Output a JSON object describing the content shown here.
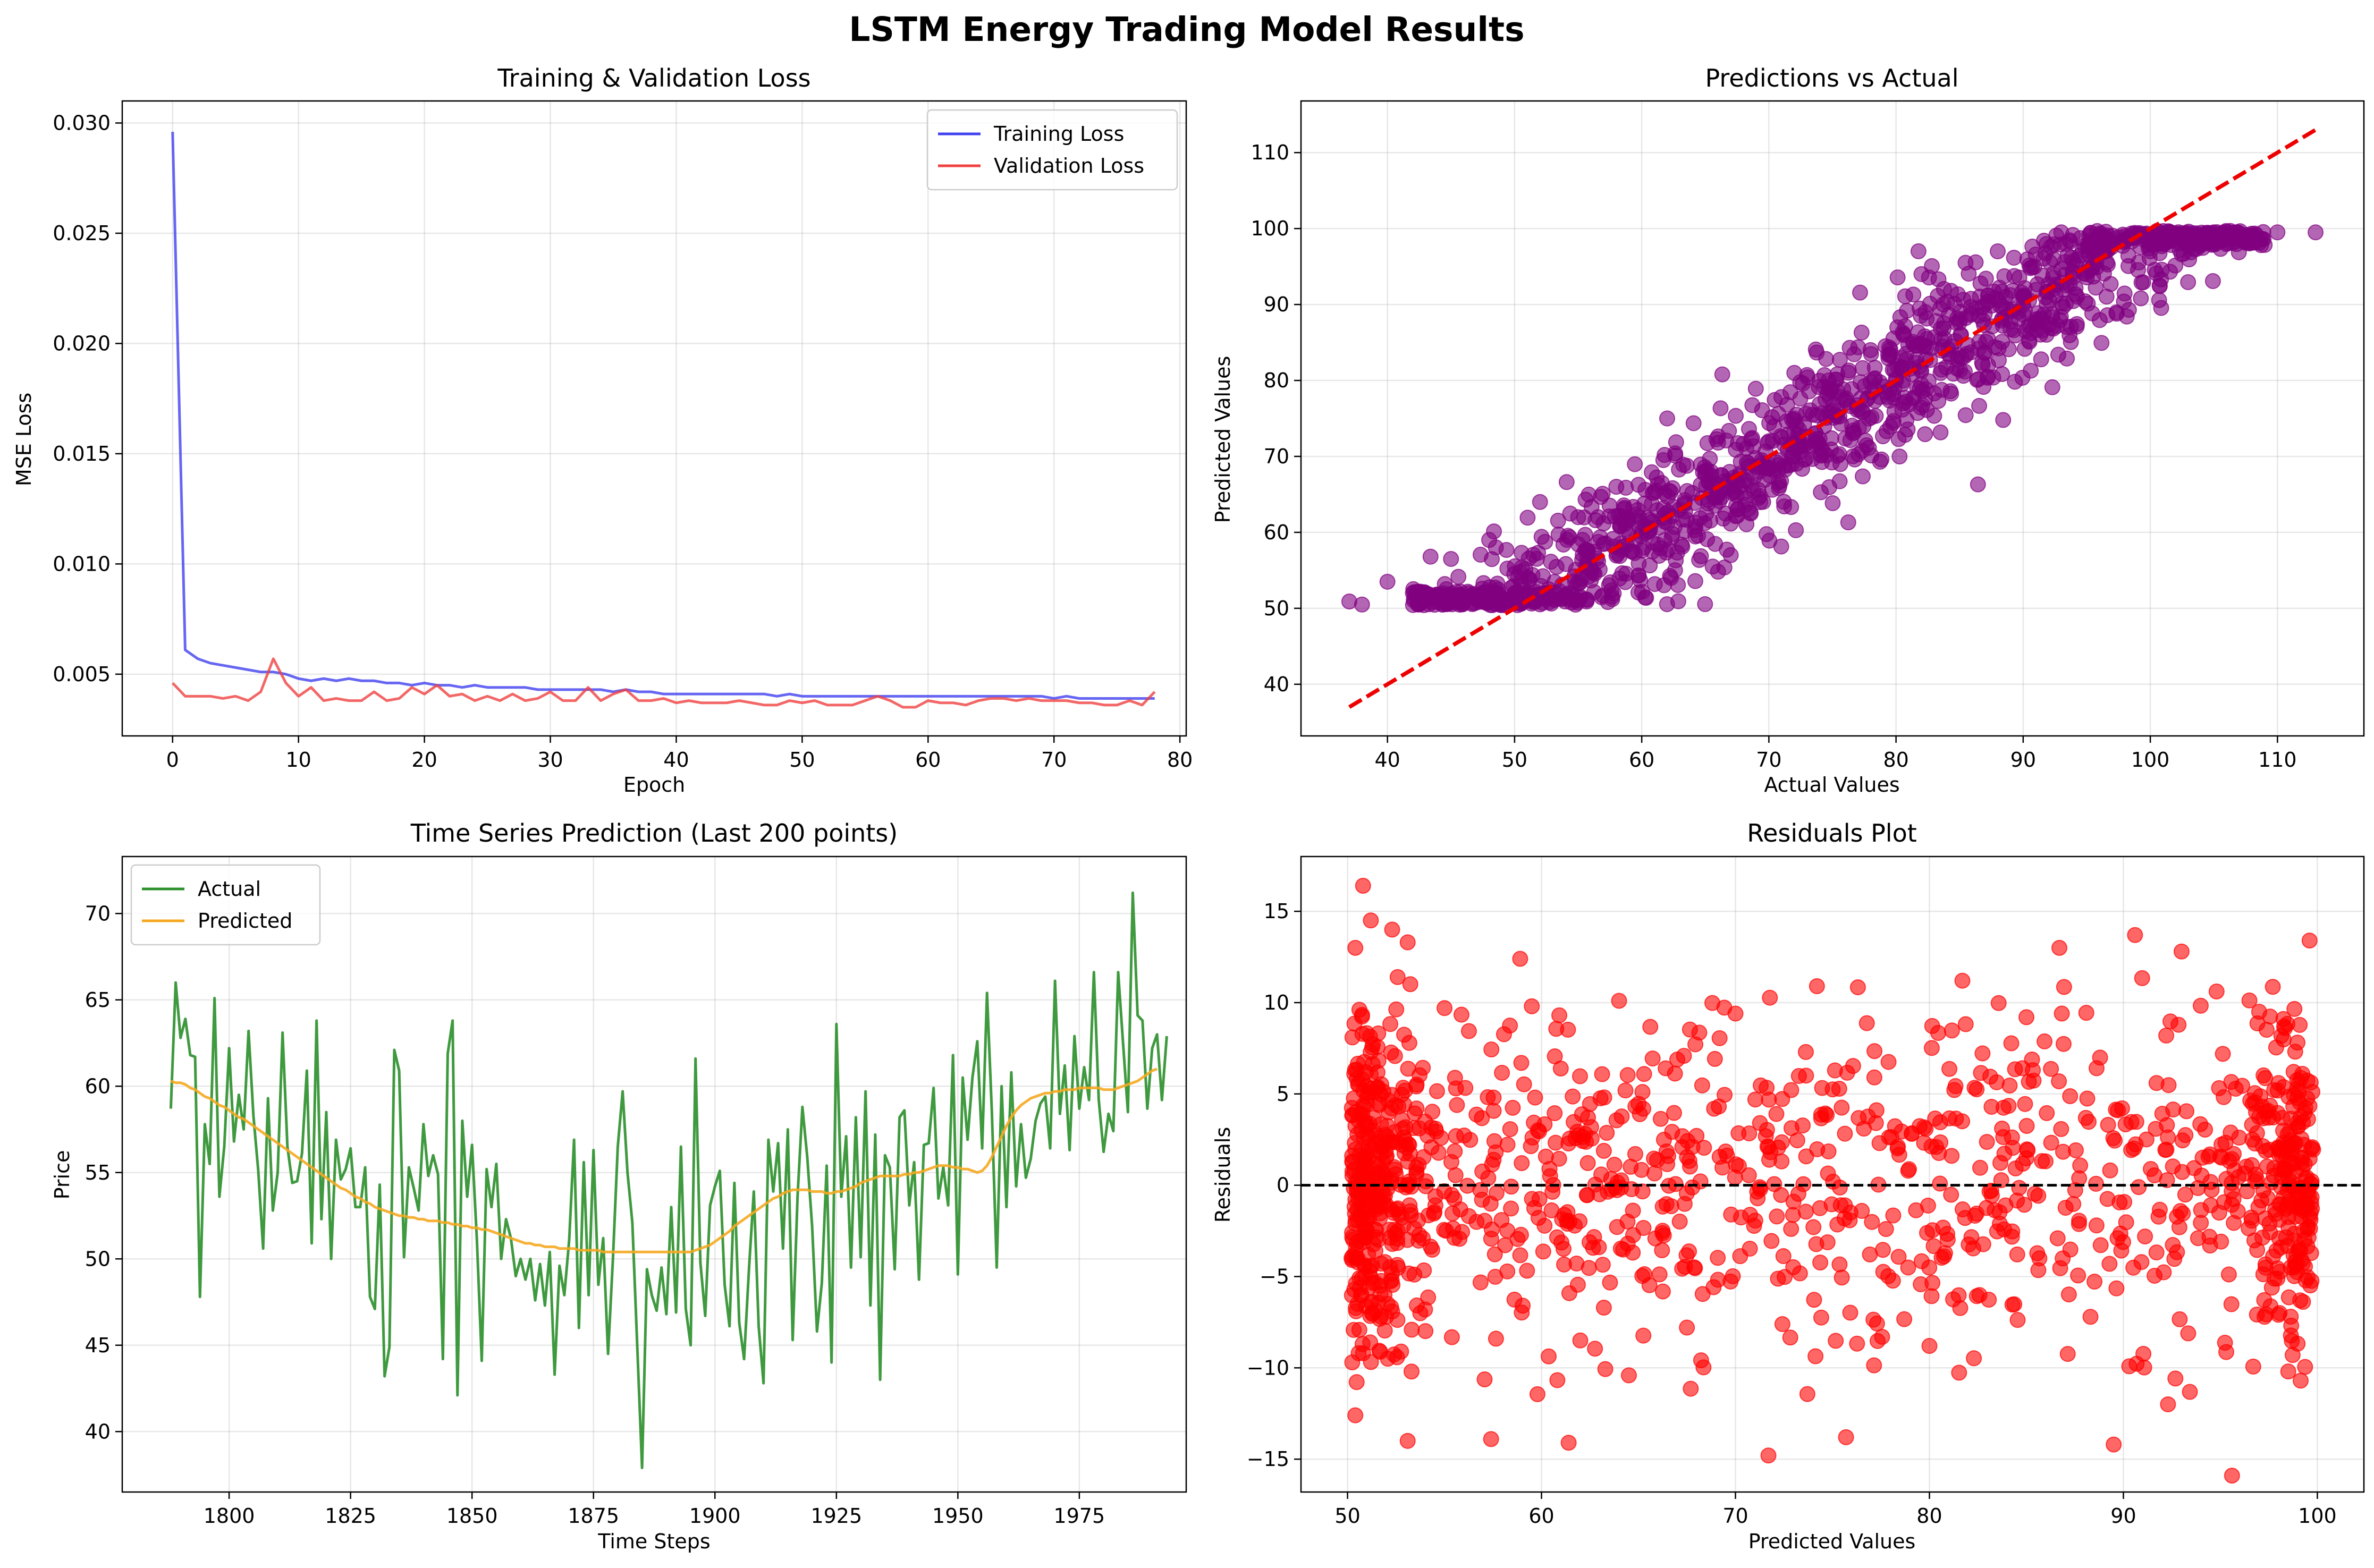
{
  "suptitle": "LSTM Energy Trading Model Results",
  "colors": {
    "training": "#4040f0",
    "validation": "#f04040",
    "scatter": "#800080",
    "ideal_line": "#ee0000",
    "actual": "#2a8f2a",
    "predicted": "#f5a820",
    "residuals": "#ff0000",
    "zero_line": "#000000"
  },
  "chart_data": [
    {
      "type": "line",
      "title": "Training & Validation Loss",
      "xlabel": "Epoch",
      "ylabel": "MSE Loss",
      "xlim": [
        -4,
        80.5
      ],
      "ylim": [
        0.0022,
        0.031
      ],
      "xticks": [
        0,
        10,
        20,
        30,
        40,
        50,
        60,
        70,
        80
      ],
      "xtick_labels": [
        "0",
        "10",
        "20",
        "30",
        "40",
        "50",
        "60",
        "70",
        "80"
      ],
      "yticks": [
        0.005,
        0.01,
        0.015,
        0.02,
        0.025,
        0.03
      ],
      "ytick_labels": [
        "0.005",
        "0.010",
        "0.015",
        "0.020",
        "0.025",
        "0.030"
      ],
      "grid": true,
      "legend": "upper right",
      "series": [
        {
          "name": "Training Loss",
          "values": [
            0.0296,
            0.0061,
            0.0057,
            0.0055,
            0.0054,
            0.0053,
            0.0052,
            0.0051,
            0.0051,
            0.005,
            0.0048,
            0.0047,
            0.0048,
            0.0047,
            0.0048,
            0.0047,
            0.0047,
            0.0046,
            0.0046,
            0.0045,
            0.0046,
            0.0045,
            0.0045,
            0.0044,
            0.0045,
            0.0044,
            0.0044,
            0.0044,
            0.0044,
            0.0043,
            0.0043,
            0.0043,
            0.0043,
            0.0043,
            0.0043,
            0.0042,
            0.0043,
            0.0042,
            0.0042,
            0.0041,
            0.0041,
            0.0041,
            0.0041,
            0.0041,
            0.0041,
            0.0041,
            0.0041,
            0.0041,
            0.004,
            0.0041,
            0.004,
            0.004,
            0.004,
            0.004,
            0.004,
            0.004,
            0.004,
            0.004,
            0.004,
            0.004,
            0.004,
            0.004,
            0.004,
            0.004,
            0.004,
            0.004,
            0.004,
            0.004,
            0.004,
            0.004,
            0.0039,
            0.004,
            0.0039,
            0.0039,
            0.0039,
            0.0039,
            0.0039,
            0.0039,
            0.0039
          ]
        },
        {
          "name": "Validation Loss",
          "values": [
            0.0046,
            0.004,
            0.004,
            0.004,
            0.0039,
            0.004,
            0.0038,
            0.0042,
            0.0057,
            0.0046,
            0.004,
            0.0044,
            0.0038,
            0.0039,
            0.0038,
            0.0038,
            0.0042,
            0.0038,
            0.0039,
            0.0044,
            0.0041,
            0.0045,
            0.004,
            0.0041,
            0.0038,
            0.004,
            0.0038,
            0.0041,
            0.0038,
            0.0039,
            0.0042,
            0.0038,
            0.0038,
            0.0044,
            0.0038,
            0.0041,
            0.0043,
            0.0038,
            0.0038,
            0.0039,
            0.0037,
            0.0038,
            0.0037,
            0.0037,
            0.0037,
            0.0038,
            0.0037,
            0.0036,
            0.0036,
            0.0038,
            0.0037,
            0.0038,
            0.0036,
            0.0036,
            0.0036,
            0.0038,
            0.004,
            0.0038,
            0.0035,
            0.0035,
            0.0038,
            0.0037,
            0.0037,
            0.0036,
            0.0038,
            0.0039,
            0.0039,
            0.0038,
            0.0039,
            0.0038,
            0.0038,
            0.0038,
            0.0037,
            0.0037,
            0.0036,
            0.0036,
            0.0038,
            0.0036,
            0.0042
          ]
        }
      ]
    },
    {
      "type": "scatter",
      "title": "Predictions vs Actual",
      "xlabel": "Actual Values",
      "ylabel": "Predicted Values",
      "xlim": [
        33.2,
        116.8
      ],
      "ylim": [
        33.2,
        116.8
      ],
      "xticks": [
        40,
        50,
        60,
        70,
        80,
        90,
        100,
        110
      ],
      "xtick_labels": [
        "40",
        "50",
        "60",
        "70",
        "80",
        "90",
        "100",
        "110"
      ],
      "yticks": [
        40,
        50,
        60,
        70,
        80,
        90,
        100,
        110
      ],
      "ytick_labels": [
        "40",
        "50",
        "60",
        "70",
        "80",
        "90",
        "100",
        "110"
      ],
      "grid": true,
      "reference_line": {
        "x": [
          37,
          113
        ],
        "y": [
          37,
          113
        ],
        "style": "dashed"
      },
      "point_count_drawn": 1400,
      "points_sample": [
        [
          37.0,
          50.9
        ],
        [
          38.0,
          50.5
        ],
        [
          40.0,
          53.5
        ],
        [
          42.0,
          52.0
        ],
        [
          45.0,
          56.5
        ],
        [
          48.0,
          59.0
        ],
        [
          50.0,
          52.0
        ],
        [
          52.0,
          64.0
        ],
        [
          55.0,
          62.0
        ],
        [
          58.0,
          66.0
        ],
        [
          60.0,
          60.0
        ],
        [
          62.0,
          75.0
        ],
        [
          65.0,
          68.0
        ],
        [
          67.0,
          57.0
        ],
        [
          70.0,
          72.0
        ],
        [
          72.0,
          81.0
        ],
        [
          75.0,
          76.0
        ],
        [
          78.0,
          84.0
        ],
        [
          80.0,
          80.0
        ],
        [
          82.0,
          94.0
        ],
        [
          85.0,
          88.0
        ],
        [
          88.0,
          97.0
        ],
        [
          90.0,
          91.0
        ],
        [
          93.0,
          99.5
        ],
        [
          95.0,
          94.0
        ],
        [
          98.0,
          99.0
        ],
        [
          100.0,
          97.0
        ],
        [
          105.0,
          99.5
        ],
        [
          110.0,
          99.5
        ],
        [
          113.0,
          99.5
        ]
      ]
    },
    {
      "type": "line",
      "title": "Time Series Prediction (Last 200 points)",
      "xlabel": "Time Steps",
      "ylabel": "Price",
      "x_start": 1788,
      "xlim": [
        1778,
        1997
      ],
      "ylim": [
        36.5,
        73.3
      ],
      "xticks": [
        1800,
        1825,
        1850,
        1875,
        1900,
        1925,
        1950,
        1975
      ],
      "xtick_labels": [
        "1800",
        "1825",
        "1850",
        "1875",
        "1900",
        "1925",
        "1950",
        "1975"
      ],
      "yticks": [
        40,
        45,
        50,
        55,
        60,
        65,
        70
      ],
      "ytick_labels": [
        "40",
        "45",
        "50",
        "55",
        "60",
        "65",
        "70"
      ],
      "grid": true,
      "legend": "upper left",
      "series": [
        {
          "name": "Actual",
          "values": [
            58.7,
            66.0,
            62.8,
            63.9,
            61.8,
            61.7,
            47.8,
            57.8,
            55.5,
            65.1,
            53.6,
            56.5,
            62.2,
            56.8,
            59.5,
            57.5,
            63.2,
            58.3,
            55.1,
            50.6,
            59.3,
            52.8,
            55.0,
            63.1,
            56.5,
            54.4,
            54.5,
            56.1,
            60.9,
            50.9,
            63.8,
            52.3,
            58.5,
            50.0,
            56.9,
            54.6,
            55.2,
            56.4,
            53.0,
            53.0,
            55.3,
            47.8,
            47.1,
            54.3,
            43.2,
            44.9,
            62.1,
            60.9,
            50.1,
            55.3,
            54.1,
            52.8,
            57.8,
            54.8,
            56.0,
            54.9,
            44.2,
            61.9,
            63.8,
            42.1,
            58.0,
            53.6,
            56.6,
            51.1,
            44.1,
            55.2,
            53.0,
            55.5,
            50.0,
            52.3,
            51.2,
            49.0,
            50.0,
            48.8,
            50.0,
            47.6,
            49.7,
            47.3,
            50.4,
            43.3,
            49.6,
            47.9,
            51.1,
            56.9,
            46.0,
            55.6,
            47.9,
            56.3,
            48.5,
            51.2,
            44.5,
            50.0,
            56.5,
            59.7,
            55.0,
            52.1,
            45.0,
            37.9,
            49.4,
            47.9,
            47.0,
            49.5,
            46.8,
            53.0,
            46.9,
            56.5,
            47.1,
            45.0,
            61.6,
            49.8,
            46.7,
            53.1,
            54.2,
            55.1,
            48.5,
            46.1,
            54.4,
            46.3,
            44.2,
            49.4,
            53.9,
            46.1,
            42.8,
            56.9,
            53.9,
            56.7,
            50.6,
            57.5,
            45.3,
            53.6,
            58.8,
            55.9,
            51.9,
            45.8,
            48.6,
            55.4,
            44.0,
            63.6,
            53.6,
            57.1,
            49.5,
            58.2,
            50.1,
            59.7,
            47.3,
            57.2,
            43.0,
            56.0,
            55.3,
            49.4,
            58.2,
            58.6,
            53.1,
            55.6,
            48.8,
            56.6,
            56.7,
            59.9,
            53.5,
            55.3,
            53.1,
            61.8,
            49.1,
            60.5,
            56.9,
            60.5,
            62.6,
            56.4,
            65.4,
            58.5,
            49.5,
            60.0,
            53.0,
            60.8,
            54.2,
            57.8,
            54.7,
            55.8,
            58.0,
            59.0,
            59.4,
            56.4,
            66.1,
            58.4,
            61.2,
            56.3,
            62.9,
            58.7,
            61.1,
            59.2,
            66.6,
            59.2,
            56.2,
            58.4,
            57.4,
            66.6,
            62.5,
            58.5,
            71.2,
            64.1,
            63.8,
            58.7,
            62.2,
            63.0,
            59.2,
            62.9
          ]
        },
        {
          "name": "Predicted",
          "values": [
            60.3,
            60.2,
            60.2,
            60.1,
            59.9,
            59.8,
            59.6,
            59.4,
            59.3,
            59.1,
            58.9,
            58.8,
            58.6,
            58.4,
            58.2,
            58.1,
            57.9,
            57.7,
            57.5,
            57.3,
            57.1,
            56.9,
            56.7,
            56.5,
            56.3,
            56.1,
            55.9,
            55.7,
            55.5,
            55.3,
            55.1,
            54.9,
            54.7,
            54.5,
            54.3,
            54.1,
            54.0,
            53.8,
            53.6,
            53.5,
            53.3,
            53.2,
            53.0,
            52.9,
            52.8,
            52.7,
            52.6,
            52.5,
            52.5,
            52.4,
            52.4,
            52.3,
            52.3,
            52.2,
            52.2,
            52.2,
            52.1,
            52.1,
            52.0,
            52.0,
            51.9,
            51.9,
            51.8,
            51.8,
            51.7,
            51.7,
            51.6,
            51.5,
            51.4,
            51.3,
            51.2,
            51.1,
            51.0,
            50.9,
            50.9,
            50.8,
            50.8,
            50.7,
            50.7,
            50.7,
            50.6,
            50.6,
            50.6,
            50.6,
            50.5,
            50.5,
            50.5,
            50.5,
            50.5,
            50.4,
            50.4,
            50.4,
            50.4,
            50.4,
            50.4,
            50.4,
            50.4,
            50.4,
            50.4,
            50.4,
            50.4,
            50.4,
            50.4,
            50.4,
            50.4,
            50.4,
            50.4,
            50.4,
            50.5,
            50.6,
            50.7,
            50.8,
            51.0,
            51.2,
            51.4,
            51.6,
            51.9,
            52.1,
            52.3,
            52.5,
            52.7,
            52.9,
            53.1,
            53.3,
            53.5,
            53.6,
            53.8,
            53.9,
            54.0,
            54.0,
            54.0,
            54.0,
            53.9,
            53.9,
            53.9,
            53.8,
            53.8,
            53.9,
            53.9,
            54.0,
            54.1,
            54.2,
            54.4,
            54.5,
            54.6,
            54.7,
            54.8,
            54.8,
            54.8,
            54.8,
            54.8,
            54.9,
            54.9,
            55.0,
            55.0,
            55.1,
            55.2,
            55.3,
            55.4,
            55.4,
            55.4,
            55.3,
            55.3,
            55.2,
            55.2,
            55.1,
            55.0,
            55.1,
            55.4,
            55.9,
            56.5,
            57.1,
            57.7,
            58.2,
            58.6,
            58.9,
            59.1,
            59.3,
            59.4,
            59.5,
            59.6,
            59.6,
            59.7,
            59.7,
            59.8,
            59.8,
            59.8,
            59.9,
            59.9,
            59.9,
            59.9,
            59.9,
            59.8,
            59.8,
            59.8,
            59.9,
            60.0,
            60.1,
            60.2,
            60.3,
            60.5,
            60.7,
            60.9,
            61.0
          ]
        }
      ]
    },
    {
      "type": "scatter",
      "title": "Residuals Plot",
      "xlabel": "Predicted Values",
      "ylabel": "Residuals",
      "xlim": [
        47.6,
        102.4
      ],
      "ylim": [
        -16.8,
        18.0
      ],
      "xticks": [
        50,
        60,
        70,
        80,
        90,
        100
      ],
      "xtick_labels": [
        "50",
        "60",
        "70",
        "80",
        "90",
        "100"
      ],
      "yticks": [
        -15,
        -10,
        -5,
        0,
        5,
        10,
        15
      ],
      "ytick_labels": [
        "−15",
        "−10",
        "−5",
        "0",
        "5",
        "10",
        "15"
      ],
      "grid": true,
      "reference_line": {
        "y": 0,
        "style": "dashed"
      },
      "point_count_drawn": 1300,
      "points_sample": [
        [
          50.8,
          16.4
        ],
        [
          51.2,
          14.5
        ],
        [
          52.3,
          14.0
        ],
        [
          50.4,
          13.0
        ],
        [
          53.1,
          13.3
        ],
        [
          58.9,
          12.4
        ],
        [
          81.7,
          11.2
        ],
        [
          90.6,
          13.7
        ],
        [
          93.0,
          12.8
        ],
        [
          99.6,
          13.4
        ],
        [
          86.7,
          13.0
        ],
        [
          95.6,
          -15.9
        ],
        [
          89.5,
          -14.2
        ],
        [
          71.7,
          -14.8
        ],
        [
          53.1,
          -14.0
        ],
        [
          61.4,
          -14.1
        ],
        [
          57.4,
          -13.9
        ],
        [
          75.7,
          -13.8
        ],
        [
          50.4,
          -12.6
        ],
        [
          92.3,
          -12.0
        ],
        [
          98.5,
          -10.2
        ],
        [
          64.0,
          10.1
        ],
        [
          74.2,
          10.9
        ],
        [
          59.5,
          9.8
        ],
        [
          55.0,
          9.7
        ],
        [
          70.0,
          9.4
        ],
        [
          85.0,
          9.2
        ],
        [
          97.0,
          9.5
        ],
        [
          62.0,
          -8.5
        ],
        [
          80.0,
          -8.8
        ]
      ]
    }
  ]
}
